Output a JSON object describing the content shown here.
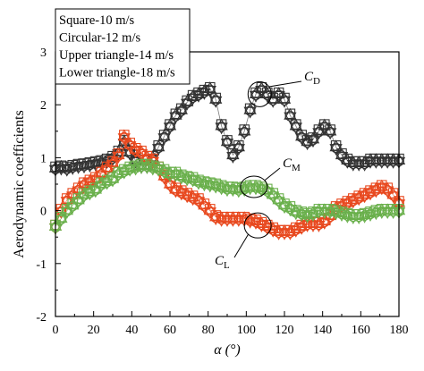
{
  "chart_data": {
    "type": "scatter",
    "xlabel": "α (°)",
    "ylabel": "Aerodynamic coefficients",
    "xlim": [
      0,
      180
    ],
    "ylim": [
      -2,
      3
    ],
    "xticks": [
      0,
      20,
      40,
      60,
      80,
      100,
      120,
      140,
      160,
      180
    ],
    "yticks": [
      -2,
      -1,
      0,
      1,
      2,
      3
    ],
    "grid": false,
    "legend_position": "top-left",
    "legend": [
      {
        "label": "Square-10 m/s",
        "marker": "square"
      },
      {
        "label": "Circular-12 m/s",
        "marker": "circle"
      },
      {
        "label": "Upper triangle-14 m/s",
        "marker": "triangle-up"
      },
      {
        "label": "Lower triangle-18 m/s",
        "marker": "triangle-down"
      }
    ],
    "annotations": [
      {
        "main": "C",
        "sub": "D",
        "target": [
          107,
          2.2
        ]
      },
      {
        "main": "C",
        "sub": "M",
        "target": [
          104,
          0.45
        ]
      },
      {
        "main": "C",
        "sub": "L",
        "target": [
          106,
          -0.28
        ]
      }
    ],
    "coefficient_colors": {
      "CD": "#333333",
      "CL": "#e8491f",
      "CM": "#6ab04c"
    },
    "x": [
      0,
      3,
      6,
      9,
      12,
      15,
      18,
      21,
      24,
      27,
      30,
      33,
      36,
      39,
      42,
      45,
      48,
      51,
      54,
      57,
      60,
      63,
      66,
      69,
      72,
      75,
      78,
      81,
      84,
      87,
      90,
      93,
      96,
      99,
      102,
      105,
      108,
      111,
      114,
      117,
      120,
      123,
      126,
      129,
      132,
      135,
      138,
      141,
      144,
      147,
      150,
      153,
      156,
      159,
      162,
      165,
      168,
      171,
      174,
      177,
      180
    ],
    "series": [
      {
        "coefficient": "CD",
        "values": [
          0.8,
          0.82,
          0.8,
          0.83,
          0.85,
          0.86,
          0.88,
          0.9,
          0.92,
          0.95,
          1.0,
          1.1,
          1.3,
          1.1,
          0.95,
          0.85,
          0.85,
          1.0,
          1.2,
          1.4,
          1.6,
          1.8,
          1.9,
          2.05,
          2.15,
          2.2,
          2.25,
          2.3,
          2.1,
          1.6,
          1.3,
          1.05,
          1.2,
          1.5,
          1.9,
          2.2,
          2.3,
          2.2,
          2.1,
          2.2,
          2.1,
          1.8,
          1.6,
          1.4,
          1.3,
          1.35,
          1.5,
          1.6,
          1.5,
          1.2,
          1.05,
          0.95,
          0.9,
          0.9,
          0.9,
          0.95,
          0.95,
          0.95,
          0.95,
          0.95,
          0.95
        ]
      },
      {
        "coefficient": "CL",
        "values": [
          -0.3,
          0.0,
          0.2,
          0.3,
          0.4,
          0.5,
          0.55,
          0.6,
          0.7,
          0.8,
          0.9,
          1.05,
          1.4,
          1.25,
          1.15,
          1.1,
          1.0,
          0.95,
          0.8,
          0.65,
          0.5,
          0.4,
          0.35,
          0.3,
          0.25,
          0.2,
          0.1,
          0.0,
          -0.12,
          -0.15,
          -0.15,
          -0.15,
          -0.15,
          -0.15,
          -0.18,
          -0.2,
          -0.25,
          -0.3,
          -0.35,
          -0.4,
          -0.4,
          -0.4,
          -0.35,
          -0.3,
          -0.25,
          -0.25,
          -0.25,
          -0.2,
          -0.1,
          0.05,
          0.1,
          0.15,
          0.2,
          0.25,
          0.3,
          0.35,
          0.4,
          0.45,
          0.4,
          0.3,
          0.15
        ]
      },
      {
        "coefficient": "CM",
        "values": [
          -0.3,
          -0.15,
          0.0,
          0.1,
          0.2,
          0.3,
          0.35,
          0.4,
          0.5,
          0.55,
          0.6,
          0.7,
          0.75,
          0.8,
          0.82,
          0.85,
          0.85,
          0.82,
          0.8,
          0.75,
          0.7,
          0.7,
          0.65,
          0.62,
          0.6,
          0.55,
          0.52,
          0.5,
          0.48,
          0.45,
          0.42,
          0.42,
          0.4,
          0.42,
          0.45,
          0.45,
          0.42,
          0.38,
          0.3,
          0.2,
          0.1,
          0.05,
          -0.02,
          -0.05,
          -0.08,
          -0.05,
          0.0,
          0.0,
          0.0,
          -0.02,
          -0.05,
          -0.08,
          -0.1,
          -0.1,
          -0.08,
          -0.05,
          -0.02,
          0.0,
          0.0,
          0.0,
          0.0
        ]
      }
    ]
  }
}
